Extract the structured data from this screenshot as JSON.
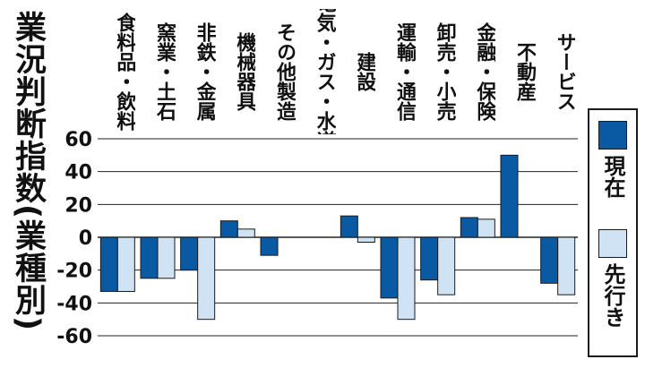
{
  "chart_data": {
    "type": "bar",
    "title": "業況判断指数(業種別)",
    "xlabel": "",
    "ylabel": "",
    "ylim": [
      -60,
      60
    ],
    "yticks": [
      60,
      40,
      20,
      0,
      -20,
      -40,
      -60
    ],
    "ytick_labels": [
      "60",
      "40",
      "20",
      "0",
      "-20",
      "-40",
      "-60"
    ],
    "grid": true,
    "legend_position": "right",
    "categories": [
      "食料品・飲料",
      "窯業・土石",
      "非鉄・金属",
      "機械器具",
      "その他製造",
      "電気・ガス・水道",
      "建設",
      "運輸・通信",
      "卸売・小売",
      "金融・保険",
      "不動産",
      "サービス"
    ],
    "series": [
      {
        "name": "現在",
        "color": "#0a5aa3",
        "values": [
          -33,
          -25,
          -20,
          10,
          -11,
          null,
          13,
          -37,
          -26,
          12,
          50,
          -28
        ]
      },
      {
        "name": "先行き",
        "color": "#cfe3f5",
        "values": [
          -33,
          -25,
          -50,
          5,
          null,
          null,
          -3,
          -50,
          -35,
          11,
          null,
          -35
        ]
      }
    ]
  }
}
